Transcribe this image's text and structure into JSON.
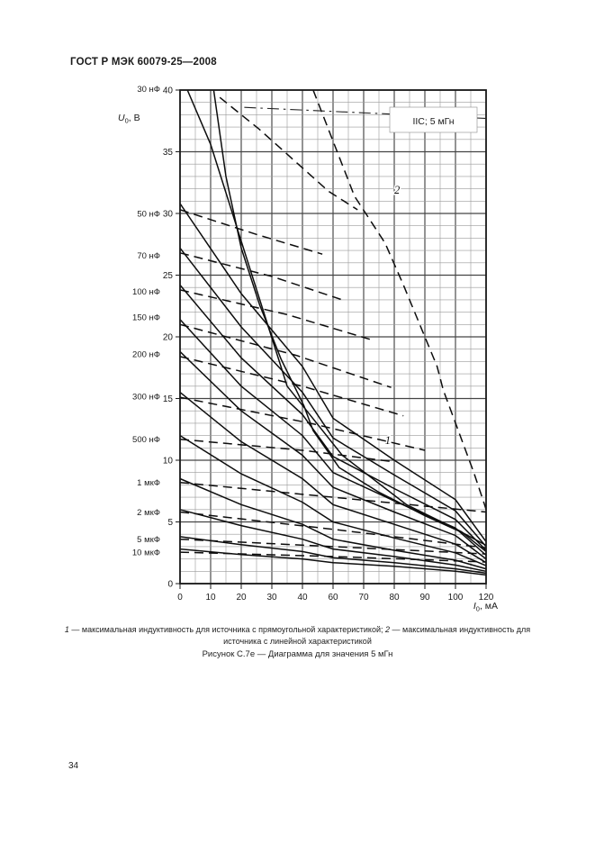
{
  "page": {
    "header": "ГОСТ Р МЭК 60079-25—2008",
    "page_number": "34"
  },
  "captions": {
    "legend_item1_num": "1",
    "legend_item1_text": " — максимальная индуктивность для источника с прямоугольной характеристикой; ",
    "legend_item2_num": "2",
    "legend_item2_text": " — максимальная индуктивность для источника с линейной характеристикой",
    "figure": "Рисунок С.7е — Диаграмма для значения 5 мГн"
  },
  "chart_data": {
    "type": "line",
    "inset_label": "IIC; 5 мГн",
    "x_axis": {
      "var": "I",
      "sub": "0",
      "unit": ", мА",
      "tick_labels": [
        0,
        10,
        20,
        30,
        40,
        60,
        70,
        80,
        90,
        100,
        120
      ],
      "note": "printed ticks are equally spaced"
    },
    "y_axis": {
      "var": "U",
      "sub": "0",
      "unit": ", В",
      "ticks": [
        0,
        5,
        10,
        15,
        20,
        25,
        30,
        35,
        40
      ],
      "range": [
        0,
        40
      ]
    },
    "capacitance_labels": [
      {
        "label": "30 нФ",
        "v": 40.1
      },
      {
        "label": "50 нФ",
        "v": 30.0
      },
      {
        "label": "70 нФ",
        "v": 26.6
      },
      {
        "label": "100 нФ",
        "v": 23.7
      },
      {
        "label": "150 нФ",
        "v": 21.6
      },
      {
        "label": "200 нФ",
        "v": 18.6
      },
      {
        "label": "300 нФ",
        "v": 15.2
      },
      {
        "label": "500 нФ",
        "v": 11.7
      },
      {
        "label": "1 мкФ",
        "v": 8.2
      },
      {
        "label": "2 мкФ",
        "v": 5.8
      },
      {
        "label": "5 мкФ",
        "v": 3.6
      },
      {
        "label": "10 мкФ",
        "v": 2.55
      }
    ],
    "annotations": [
      {
        "text": "1",
        "x": 77,
        "y": 11.3
      },
      {
        "text": "2",
        "x": 80,
        "y": 31.6
      }
    ],
    "series": [
      {
        "name": "30 нФ",
        "style": "solid",
        "points": [
          [
            2.4,
            40
          ],
          [
            10,
            35.6
          ],
          [
            23,
            25.4
          ],
          [
            35,
            16.0
          ],
          [
            63,
            10.4
          ],
          [
            84,
            6.4
          ],
          [
            104,
            4.2
          ],
          [
            120,
            2.6
          ]
        ]
      },
      {
        "name": "1 — прямоугольная характеристика",
        "style": "solid",
        "points": [
          [
            11,
            40
          ],
          [
            15,
            33
          ],
          [
            20,
            27.2
          ],
          [
            26,
            22.6
          ],
          [
            33,
            18.2
          ],
          [
            41,
            14.4
          ],
          [
            47,
            12.4
          ],
          [
            62,
            9.4
          ],
          [
            75,
            7.4
          ],
          [
            90,
            5.5
          ],
          [
            105,
            4.1
          ],
          [
            120,
            3.1
          ]
        ]
      },
      {
        "name": "2 — линейная характеристика",
        "style": "dashed",
        "points": [
          [
            47,
            40
          ],
          [
            67,
            31.4
          ],
          [
            77,
            27.6
          ],
          [
            83,
            24.2
          ],
          [
            94,
            17.6
          ],
          [
            96,
            15.7
          ],
          [
            112,
            9.0
          ],
          [
            119,
            6.4
          ],
          [
            120,
            6.0
          ]
        ]
      },
      {
        "name": "штрихпунктирная линия",
        "style": "chain",
        "points": [
          [
            21,
            38.6
          ],
          [
            120,
            37.7
          ]
        ]
      },
      {
        "name": "30 нФ",
        "style": "dashed",
        "points": [
          [
            13,
            39.4
          ],
          [
            26,
            36.8
          ],
          [
            57,
            31.8
          ],
          [
            68,
            30.3
          ]
        ]
      },
      {
        "name": "50 нФ",
        "style": "solid",
        "points": [
          [
            0,
            30.8
          ],
          [
            20,
            23.5
          ],
          [
            40,
            17.6
          ],
          [
            60,
            13.4
          ],
          [
            80,
            10.0
          ],
          [
            100,
            6.8
          ],
          [
            120,
            3.4
          ]
        ]
      },
      {
        "name": "50 нФ",
        "style": "dashed",
        "points": [
          [
            0,
            30.3
          ],
          [
            25,
            28.3
          ],
          [
            53,
            26.7
          ]
        ]
      },
      {
        "name": "70 нФ",
        "style": "solid",
        "points": [
          [
            0,
            27.2
          ],
          [
            20,
            20.8
          ],
          [
            40,
            15.5
          ],
          [
            60,
            11.8
          ],
          [
            80,
            8.8
          ],
          [
            100,
            5.9
          ],
          [
            120,
            3.0
          ]
        ]
      },
      {
        "name": "70 нФ",
        "style": "dashed",
        "points": [
          [
            0,
            26.8
          ],
          [
            30,
            24.9
          ],
          [
            63,
            23.0
          ]
        ]
      },
      {
        "name": "100 нФ",
        "style": "solid",
        "points": [
          [
            0,
            24.2
          ],
          [
            20,
            18.3
          ],
          [
            40,
            13.7
          ],
          [
            60,
            10.3
          ],
          [
            80,
            7.7
          ],
          [
            100,
            5.2
          ],
          [
            120,
            2.7
          ]
        ]
      },
      {
        "name": "100 нФ",
        "style": "dashed",
        "points": [
          [
            0,
            23.8
          ],
          [
            35,
            21.8
          ],
          [
            72,
            19.8
          ]
        ]
      },
      {
        "name": "150 нФ",
        "style": "solid",
        "points": [
          [
            0,
            21.4
          ],
          [
            20,
            16.0
          ],
          [
            40,
            12.0
          ],
          [
            60,
            9.0
          ],
          [
            80,
            6.7
          ],
          [
            100,
            4.5
          ],
          [
            120,
            2.3
          ]
        ]
      },
      {
        "name": "150 нФ",
        "style": "dashed",
        "points": [
          [
            0,
            21.0
          ],
          [
            38,
            18.5
          ],
          [
            79,
            15.9
          ]
        ]
      },
      {
        "name": "200 нФ",
        "style": "solid",
        "points": [
          [
            0,
            18.8
          ],
          [
            20,
            14.0
          ],
          [
            40,
            10.4
          ],
          [
            60,
            7.8
          ],
          [
            80,
            5.8
          ],
          [
            100,
            3.9
          ],
          [
            120,
            2.0
          ]
        ]
      },
      {
        "name": "200 нФ",
        "style": "dashed",
        "points": [
          [
            0,
            18.4
          ],
          [
            40,
            16.0
          ],
          [
            83,
            13.6
          ]
        ]
      },
      {
        "name": "300 нФ",
        "style": "solid",
        "points": [
          [
            0,
            15.5
          ],
          [
            20,
            11.5
          ],
          [
            40,
            8.5
          ],
          [
            60,
            6.4
          ],
          [
            80,
            4.8
          ],
          [
            100,
            3.2
          ],
          [
            120,
            1.7
          ]
        ]
      },
      {
        "name": "300 нФ",
        "style": "dashed",
        "points": [
          [
            0,
            15.1
          ],
          [
            45,
            13.0
          ],
          [
            90,
            10.8
          ]
        ]
      },
      {
        "name": "500 нФ",
        "style": "solid",
        "points": [
          [
            0,
            12.0
          ],
          [
            20,
            8.9
          ],
          [
            40,
            6.6
          ],
          [
            60,
            5.0
          ],
          [
            80,
            3.7
          ],
          [
            100,
            2.5
          ],
          [
            120,
            1.45
          ]
        ]
      },
      {
        "name": "500 нФ",
        "style": "dashed",
        "points": [
          [
            0,
            11.7
          ],
          [
            40,
            10.8
          ],
          [
            79,
            9.9
          ]
        ]
      },
      {
        "name": "1 мкФ",
        "style": "solid",
        "points": [
          [
            0,
            8.5
          ],
          [
            20,
            6.4
          ],
          [
            40,
            4.8
          ],
          [
            60,
            3.6
          ],
          [
            80,
            2.7
          ],
          [
            100,
            1.9
          ],
          [
            120,
            1.2
          ]
        ]
      },
      {
        "name": "1 мкФ",
        "style": "dashed",
        "points": [
          [
            0,
            8.2
          ],
          [
            60,
            7.0
          ],
          [
            120,
            5.8
          ]
        ]
      },
      {
        "name": "2 мкФ",
        "style": "solid",
        "points": [
          [
            0,
            6.0
          ],
          [
            20,
            4.7
          ],
          [
            40,
            3.6
          ],
          [
            60,
            2.8
          ],
          [
            80,
            2.2
          ],
          [
            100,
            1.5
          ],
          [
            120,
            1.0
          ]
        ]
      },
      {
        "name": "2 мкФ",
        "style": "dashed",
        "points": [
          [
            0,
            5.8
          ],
          [
            60,
            4.4
          ],
          [
            120,
            2.9
          ]
        ]
      },
      {
        "name": "5 мкФ",
        "style": "solid",
        "points": [
          [
            0,
            3.8
          ],
          [
            20,
            3.15
          ],
          [
            40,
            2.6
          ],
          [
            60,
            2.1
          ],
          [
            80,
            1.7
          ],
          [
            100,
            1.2
          ],
          [
            120,
            0.85
          ]
        ]
      },
      {
        "name": "5 мкФ",
        "style": "dashed",
        "points": [
          [
            0,
            3.6
          ],
          [
            60,
            3.0
          ],
          [
            120,
            2.4
          ]
        ]
      },
      {
        "name": "10 мкФ",
        "style": "solid",
        "points": [
          [
            0,
            2.8
          ],
          [
            20,
            2.35
          ],
          [
            40,
            2.0
          ],
          [
            60,
            1.7
          ],
          [
            80,
            1.4
          ],
          [
            100,
            1.0
          ],
          [
            120,
            0.7
          ]
        ]
      },
      {
        "name": "10 мкФ",
        "style": "dashed",
        "points": [
          [
            0,
            2.55
          ],
          [
            60,
            2.2
          ],
          [
            120,
            1.75
          ]
        ]
      }
    ]
  }
}
